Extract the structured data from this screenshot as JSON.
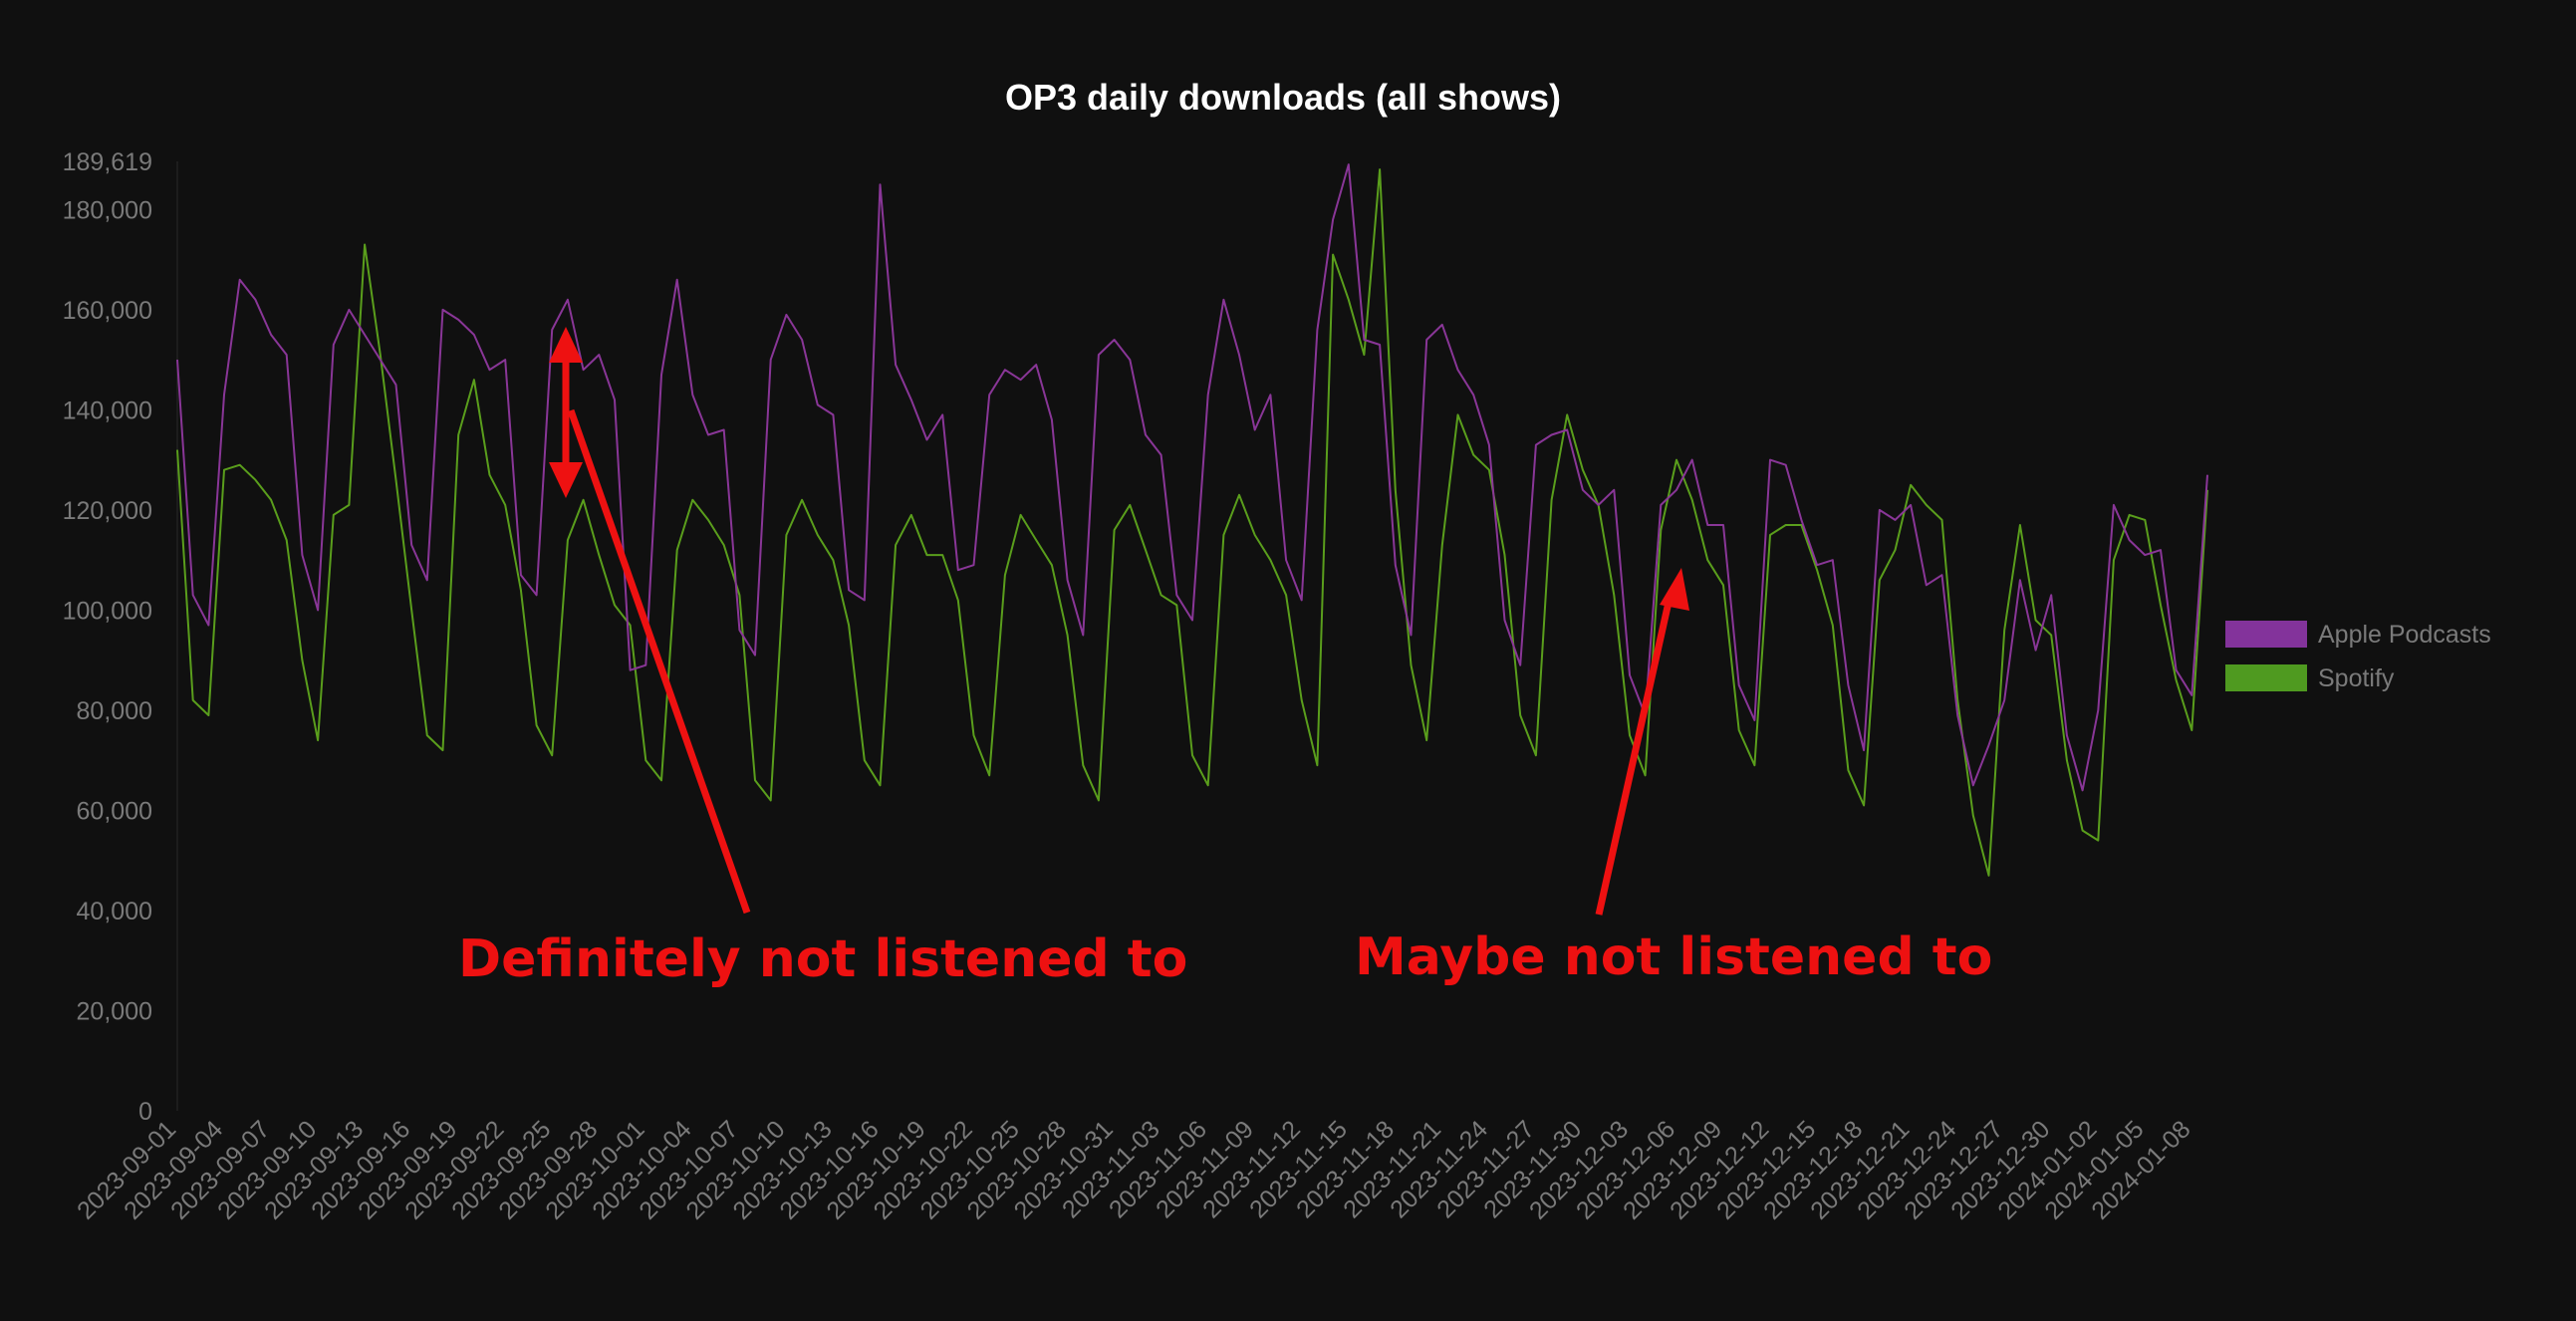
{
  "chart_data": {
    "type": "line",
    "title": "OP3 daily downloads (all shows)",
    "xlabel": "",
    "ylabel": "",
    "ylim": [
      0,
      189619
    ],
    "y_max_label": "189,619",
    "y_ticks": [
      0,
      20000,
      40000,
      60000,
      80000,
      100000,
      120000,
      140000,
      160000,
      180000
    ],
    "y_tick_labels": [
      "0",
      "20,000",
      "40,000",
      "60,000",
      "80,000",
      "100,000",
      "120,000",
      "140,000",
      "160,000",
      "180,000"
    ],
    "grid": false,
    "legend_position": "right",
    "x_start": "2023-09-01",
    "x_end": "2024-01-08",
    "x_tick_labels": [
      "2023-09-01",
      "2023-09-04",
      "2023-09-07",
      "2023-09-10",
      "2023-09-13",
      "2023-09-16",
      "2023-09-19",
      "2023-09-22",
      "2023-09-25",
      "2023-09-28",
      "2023-10-01",
      "2023-10-04",
      "2023-10-07",
      "2023-10-10",
      "2023-10-13",
      "2023-10-16",
      "2023-10-19",
      "2023-10-22",
      "2023-10-25",
      "2023-10-28",
      "2023-10-31",
      "2023-11-03",
      "2023-11-06",
      "2023-11-09",
      "2023-11-12",
      "2023-11-15",
      "2023-11-18",
      "2023-11-21",
      "2023-11-24",
      "2023-11-27",
      "2023-11-30",
      "2023-12-03",
      "2023-12-06",
      "2023-12-09",
      "2023-12-12",
      "2023-12-15",
      "2023-12-18",
      "2023-12-21",
      "2023-12-24",
      "2023-12-27",
      "2023-12-30",
      "2024-01-02",
      "2024-01-05",
      "2024-01-08"
    ],
    "series": [
      {
        "name": "Apple Podcasts",
        "color": "#893697",
        "legend_color": "#83339b",
        "values": [
          150000,
          103000,
          97000,
          143000,
          166000,
          162000,
          155000,
          151000,
          111000,
          100000,
          153000,
          160000,
          155000,
          150000,
          145000,
          113000,
          106000,
          160000,
          158000,
          155000,
          148000,
          150000,
          107000,
          103000,
          156000,
          162000,
          148000,
          151000,
          142000,
          88000,
          89000,
          147000,
          166000,
          143000,
          135000,
          136000,
          96000,
          91000,
          150000,
          159000,
          154000,
          141000,
          139000,
          104000,
          102000,
          185000,
          149000,
          142000,
          134000,
          139000,
          108000,
          109000,
          143000,
          148000,
          146000,
          149000,
          138000,
          106000,
          95000,
          151000,
          154000,
          150000,
          135000,
          131000,
          103000,
          98000,
          143000,
          162000,
          151000,
          136000,
          143000,
          110000,
          102000,
          156000,
          178000,
          189000,
          154000,
          153000,
          109000,
          95000,
          154000,
          157000,
          148000,
          143000,
          133000,
          98000,
          89000,
          133000,
          135000,
          136000,
          124000,
          121000,
          124000,
          87000,
          79000,
          121000,
          124000,
          130000,
          117000,
          117000,
          85000,
          78000,
          130000,
          129000,
          118000,
          109000,
          110000,
          85000,
          72000,
          120000,
          118000,
          121000,
          105000,
          107000,
          79000,
          65000,
          73000,
          82000,
          106000,
          92000,
          103000,
          75000,
          64000,
          80000,
          121000,
          114000,
          111000,
          112000,
          88000,
          83000,
          127000
        ],
        "data_labels": []
      },
      {
        "name": "Spotify",
        "color": "#5a9e1c",
        "legend_color": "#4f9a20",
        "values": [
          132000,
          82000,
          79000,
          128000,
          129000,
          126000,
          122000,
          114000,
          90000,
          74000,
          119000,
          121000,
          173000,
          151000,
          126000,
          100000,
          75000,
          72000,
          135000,
          146000,
          127000,
          121000,
          104000,
          77000,
          71000,
          114000,
          122000,
          111000,
          101000,
          97000,
          70000,
          66000,
          112000,
          122000,
          118000,
          113000,
          103000,
          66000,
          62000,
          115000,
          122000,
          115000,
          110000,
          97000,
          70000,
          65000,
          113000,
          119000,
          111000,
          111000,
          102000,
          75000,
          67000,
          107000,
          119000,
          114000,
          109000,
          95000,
          69000,
          62000,
          116000,
          121000,
          112000,
          103000,
          101000,
          71000,
          65000,
          115000,
          123000,
          115000,
          110000,
          103000,
          82000,
          69000,
          171000,
          162000,
          151000,
          188000,
          124000,
          89000,
          74000,
          113000,
          139000,
          131000,
          128000,
          111000,
          79000,
          71000,
          122000,
          139000,
          128000,
          121000,
          103000,
          75000,
          67000,
          116000,
          130000,
          122000,
          110000,
          105000,
          76000,
          69000,
          115000,
          117000,
          117000,
          108000,
          97000,
          68000,
          61000,
          106000,
          112000,
          125000,
          121000,
          118000,
          82000,
          59000,
          47000,
          96000,
          117000,
          98000,
          95000,
          70000,
          56000,
          54000,
          110000,
          119000,
          118000,
          101000,
          86000,
          76000,
          124000
        ],
        "data_labels": []
      }
    ],
    "annotations": [
      {
        "text": "Definitely not listened to"
      },
      {
        "text": "Maybe not listened to"
      }
    ]
  }
}
